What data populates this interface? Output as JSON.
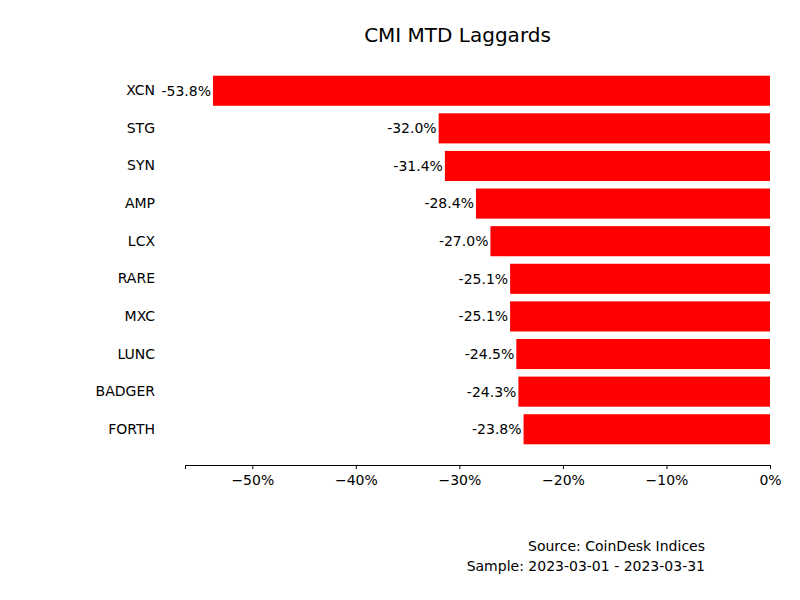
{
  "chart_data": {
    "type": "bar",
    "orientation": "horizontal",
    "title": "CMI MTD Laggards",
    "categories": [
      "XCN",
      "STG",
      "SYN",
      "AMP",
      "LCX",
      "RARE",
      "MXC",
      "LUNC",
      "BADGER",
      "FORTH"
    ],
    "values": [
      -53.8,
      -32.0,
      -31.4,
      -28.4,
      -27.0,
      -25.1,
      -25.1,
      -24.5,
      -24.3,
      -23.8
    ],
    "value_labels": [
      "-53.8%",
      "-32.0%",
      "-31.4%",
      "-28.4%",
      "-27.0%",
      "-25.1%",
      "-25.1%",
      "-24.5%",
      "-24.3%",
      "-23.8%"
    ],
    "data_labels": true,
    "color": "#ff0000",
    "xlim": [
      -56.5,
      0
    ],
    "xticks": [
      {
        "value": -50,
        "label": "−50%"
      },
      {
        "value": -40,
        "label": "−40%"
      },
      {
        "value": -30,
        "label": "−30%"
      },
      {
        "value": -20,
        "label": "−20%"
      },
      {
        "value": -10,
        "label": "−10%"
      },
      {
        "value": 0,
        "label": "0%"
      }
    ],
    "grid": false,
    "annotations": [
      "Source: CoinDesk Indices",
      "Sample: 2023-03-01 - 2023-03-31"
    ]
  }
}
